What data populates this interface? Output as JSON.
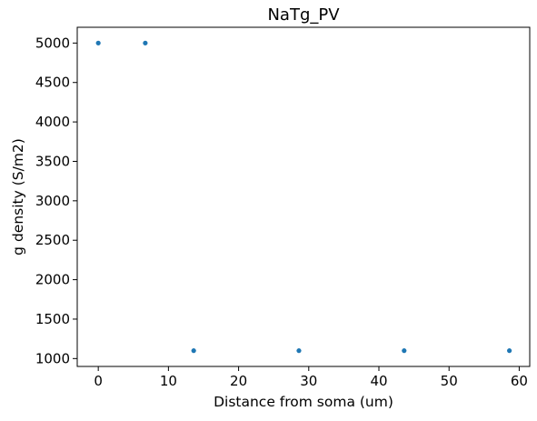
{
  "chart_data": {
    "type": "scatter",
    "title": "NaTg_PV",
    "xlabel": "Distance from soma (um)",
    "ylabel": "g density (S/m2)",
    "xlim": [
      -3,
      61.5
    ],
    "ylim": [
      900,
      5200
    ],
    "x_ticks": [
      0,
      10,
      20,
      30,
      40,
      50,
      60
    ],
    "y_ticks": [
      1000,
      1500,
      2000,
      2500,
      3000,
      3500,
      4000,
      4500,
      5000
    ],
    "grid": false,
    "marker_color": "#1f77b4",
    "series": [
      {
        "x": [
          0,
          6.7,
          13.6,
          28.6,
          43.6,
          58.6
        ],
        "y": [
          5000,
          5000,
          1100,
          1100,
          1100,
          1100
        ]
      }
    ]
  }
}
